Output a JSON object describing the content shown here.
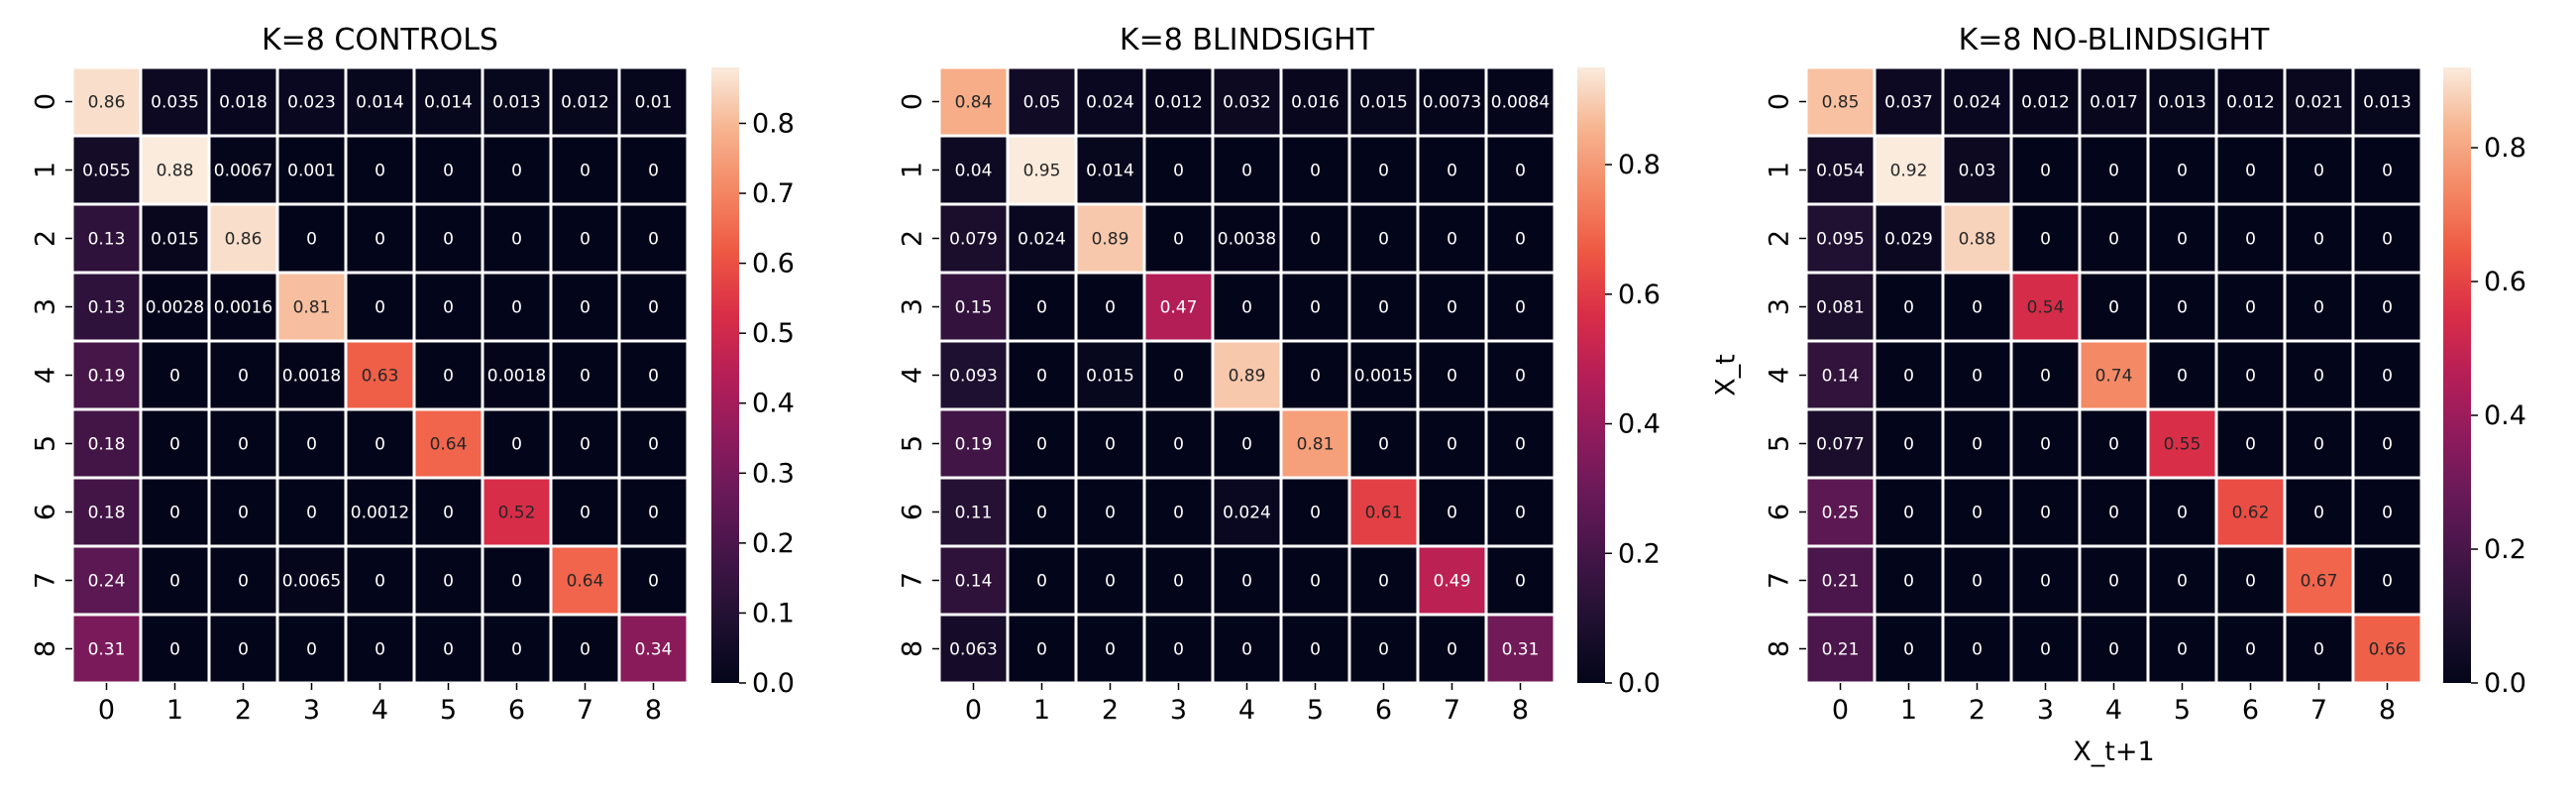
{
  "chart_data": [
    {
      "type": "heatmap",
      "title": "K=8 CONTROLS",
      "xlabel": "",
      "ylabel": "",
      "x_categories": [
        "0",
        "1",
        "2",
        "3",
        "4",
        "5",
        "6",
        "7",
        "8"
      ],
      "y_categories": [
        "0",
        "1",
        "2",
        "3",
        "4",
        "5",
        "6",
        "7",
        "8"
      ],
      "values": [
        [
          "0.86",
          "0.035",
          "0.018",
          "0.023",
          "0.014",
          "0.014",
          "0.013",
          "0.012",
          "0.01"
        ],
        [
          "0.055",
          "0.88",
          "0.0067",
          "0.001",
          "0",
          "0",
          "0",
          "0",
          "0"
        ],
        [
          "0.13",
          "0.015",
          "0.86",
          "0",
          "0",
          "0",
          "0",
          "0",
          "0"
        ],
        [
          "0.13",
          "0.0028",
          "0.0016",
          "0.81",
          "0",
          "0",
          "0",
          "0",
          "0"
        ],
        [
          "0.19",
          "0",
          "0",
          "0.0018",
          "0.63",
          "0",
          "0.0018",
          "0",
          "0"
        ],
        [
          "0.18",
          "0",
          "0",
          "0",
          "0",
          "0.64",
          "0",
          "0",
          "0"
        ],
        [
          "0.18",
          "0",
          "0",
          "0",
          "0.0012",
          "0",
          "0.52",
          "0",
          "0"
        ],
        [
          "0.24",
          "0",
          "0",
          "0.0065",
          "0",
          "0",
          "0",
          "0.64",
          "0"
        ],
        [
          "0.31",
          "0",
          "0",
          "0",
          "0",
          "0",
          "0",
          "0",
          "0.34"
        ]
      ],
      "colorbar": {
        "min": 0.0,
        "max": 0.88,
        "ticks": [
          "0.0",
          "0.1",
          "0.2",
          "0.3",
          "0.4",
          "0.5",
          "0.6",
          "0.7",
          "0.8"
        ]
      },
      "colormap": "rocket"
    },
    {
      "type": "heatmap",
      "title": "K=8 BLINDSIGHT",
      "xlabel": "",
      "ylabel": "",
      "x_categories": [
        "0",
        "1",
        "2",
        "3",
        "4",
        "5",
        "6",
        "7",
        "8"
      ],
      "y_categories": [
        "0",
        "1",
        "2",
        "3",
        "4",
        "5",
        "6",
        "7",
        "8"
      ],
      "values": [
        [
          "0.84",
          "0.05",
          "0.024",
          "0.012",
          "0.032",
          "0.016",
          "0.015",
          "0.0073",
          "0.0084"
        ],
        [
          "0.04",
          "0.95",
          "0.014",
          "0",
          "0",
          "0",
          "0",
          "0",
          "0"
        ],
        [
          "0.079",
          "0.024",
          "0.89",
          "0",
          "0.0038",
          "0",
          "0",
          "0",
          "0"
        ],
        [
          "0.15",
          "0",
          "0",
          "0.47",
          "0",
          "0",
          "0",
          "0",
          "0"
        ],
        [
          "0.093",
          "0",
          "0.015",
          "0",
          "0.89",
          "0",
          "0.0015",
          "0",
          "0"
        ],
        [
          "0.19",
          "0",
          "0",
          "0",
          "0",
          "0.81",
          "0",
          "0",
          "0"
        ],
        [
          "0.11",
          "0",
          "0",
          "0",
          "0.024",
          "0",
          "0.61",
          "0",
          "0"
        ],
        [
          "0.14",
          "0",
          "0",
          "0",
          "0",
          "0",
          "0",
          "0.49",
          "0"
        ],
        [
          "0.063",
          "0",
          "0",
          "0",
          "0",
          "0",
          "0",
          "0",
          "0.31"
        ]
      ],
      "colorbar": {
        "min": 0.0,
        "max": 0.95,
        "ticks": [
          "0.0",
          "0.2",
          "0.4",
          "0.6",
          "0.8"
        ]
      },
      "colormap": "rocket"
    },
    {
      "type": "heatmap",
      "title": "K=8 NO-BLINDSIGHT",
      "xlabel": "X_t+1",
      "ylabel": "X_t",
      "x_categories": [
        "0",
        "1",
        "2",
        "3",
        "4",
        "5",
        "6",
        "7",
        "8"
      ],
      "y_categories": [
        "0",
        "1",
        "2",
        "3",
        "4",
        "5",
        "6",
        "7",
        "8"
      ],
      "values": [
        [
          "0.85",
          "0.037",
          "0.024",
          "0.012",
          "0.017",
          "0.013",
          "0.012",
          "0.021",
          "0.013"
        ],
        [
          "0.054",
          "0.92",
          "0.03",
          "0",
          "0",
          "0",
          "0",
          "0",
          "0"
        ],
        [
          "0.095",
          "0.029",
          "0.88",
          "0",
          "0",
          "0",
          "0",
          "0",
          "0"
        ],
        [
          "0.081",
          "0",
          "0",
          "0.54",
          "0",
          "0",
          "0",
          "0",
          "0"
        ],
        [
          "0.14",
          "0",
          "0",
          "0",
          "0.74",
          "0",
          "0",
          "0",
          "0"
        ],
        [
          "0.077",
          "0",
          "0",
          "0",
          "0",
          "0.55",
          "0",
          "0",
          "0"
        ],
        [
          "0.25",
          "0",
          "0",
          "0",
          "0",
          "0",
          "0.62",
          "0",
          "0"
        ],
        [
          "0.21",
          "0",
          "0",
          "0",
          "0",
          "0",
          "0",
          "0.67",
          "0"
        ],
        [
          "0.21",
          "0",
          "0",
          "0",
          "0",
          "0",
          "0",
          "0",
          "0.66"
        ]
      ],
      "colorbar": {
        "min": 0.0,
        "max": 0.92,
        "ticks": [
          "0.0",
          "0.2",
          "0.4",
          "0.6",
          "0.8"
        ]
      },
      "colormap": "rocket"
    }
  ]
}
